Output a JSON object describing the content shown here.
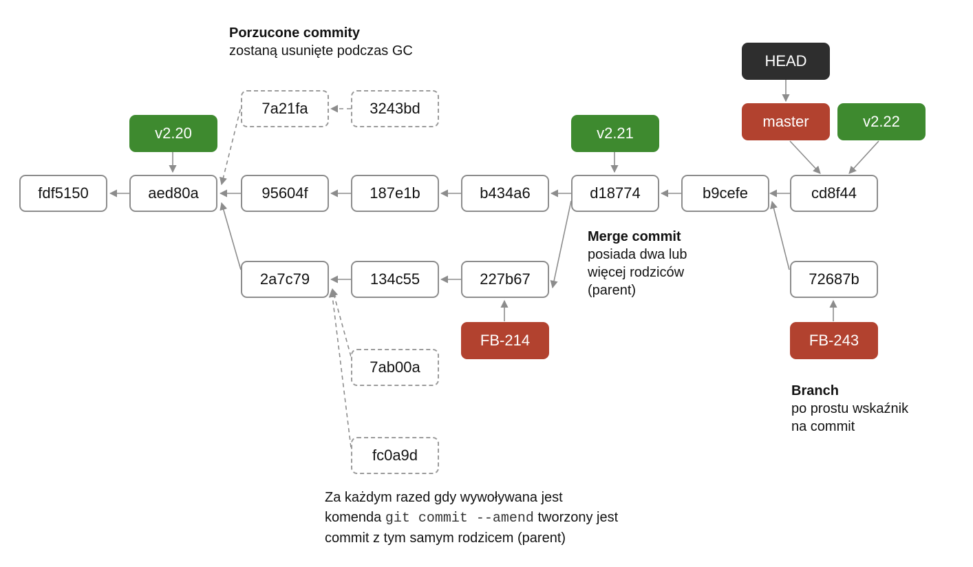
{
  "commits": {
    "fdf5150": "fdf5150",
    "aed80a": "aed80a",
    "c95604f": "95604f",
    "c187e1b": "187e1b",
    "b434a6": "b434a6",
    "d18774": "d18774",
    "b9cefe": "b9cefe",
    "cd8f44": "cd8f44",
    "c7a21fa": "7a21fa",
    "c3243bd": "3243bd",
    "c2a7c79": "2a7c79",
    "c134c55": "134c55",
    "c227b67": "227b67",
    "c72687b": "72687b",
    "c7ab00a": "7ab00a",
    "fc0a9d": "fc0a9d"
  },
  "refs": {
    "head": "HEAD",
    "master": "master",
    "v220": "v2.20",
    "v221": "v2.21",
    "v222": "v2.22",
    "fb214": "FB-214",
    "fb243": "FB-243"
  },
  "notes": {
    "orphan_title": "Porzucone commity",
    "orphan_text": "zostaną usunięte podczas GC",
    "merge_title": "Merge commit",
    "merge_line1": "posiada dwa lub",
    "merge_line2": "więcej rodziców",
    "merge_line3": "(parent)",
    "branch_title": "Branch",
    "branch_line1": "po prostu wskaźnik",
    "branch_line2": "na commit",
    "amend_part1": "Za każdym razed gdy wywoływana jest",
    "amend_part2": "komenda ",
    "amend_code": "git commit --amend",
    "amend_part3": " tworzony jest",
    "amend_part4": "commit z tym samym rodzicem (parent)"
  },
  "colors": {
    "tag": "#3e8a2f",
    "branch": "#b2422f",
    "head": "#2e2e2e",
    "edge": "#8c8c8c"
  }
}
